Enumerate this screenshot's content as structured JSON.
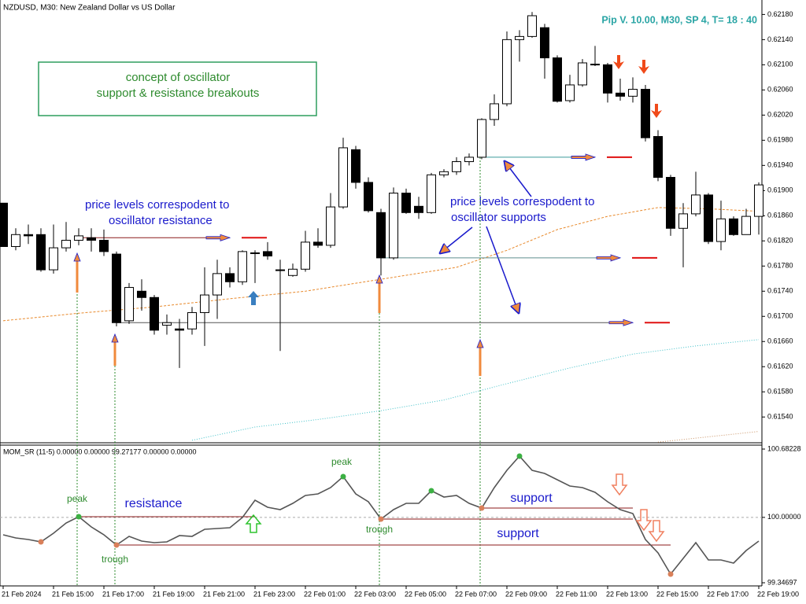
{
  "chart_data": [
    {
      "type": "candlestick",
      "title": "NZDUSD, M30:  New Zealand Dollar vs US Dollar",
      "subtitle": "Pip V. 10.00,  M30, SP 4,  T= 18  : 40",
      "open": [
        0.6188,
        0.61811,
        0.6183,
        0.6183,
        0.61774,
        0.61809,
        0.61821,
        0.61825,
        0.61821,
        0.61799,
        0.61693,
        0.6174,
        0.6173,
        0.61686,
        0.6168,
        0.6168,
        0.61706,
        0.61734,
        0.61768,
        0.61755,
        0.61801,
        0.61803,
        0.61774,
        0.61765,
        0.61775,
        0.61818,
        0.61813,
        0.61874,
        0.61965,
        0.61913,
        0.61865,
        0.61793,
        0.61896,
        0.61875,
        0.61865,
        0.61925,
        0.6193,
        0.61946,
        0.61953,
        0.62013,
        0.62038,
        0.6214,
        0.62145,
        0.62159,
        0.62111,
        0.62043,
        0.62068,
        0.62101,
        0.621,
        0.62055,
        0.6205,
        0.62061,
        0.61986,
        0.61921,
        0.6184,
        0.61863,
        0.61893,
        0.61819,
        0.61855,
        0.6183,
        0.61859
      ],
      "high": [
        0.6188,
        0.6184,
        0.61846,
        0.6184,
        0.61846,
        0.6185,
        0.6184,
        0.6184,
        0.61838,
        0.61803,
        0.61753,
        0.61759,
        0.61734,
        0.61703,
        0.61696,
        0.61715,
        0.61778,
        0.6179,
        0.61778,
        0.61805,
        0.61805,
        0.61818,
        0.6179,
        0.61784,
        0.61836,
        0.6184,
        0.61896,
        0.61984,
        0.61971,
        0.61921,
        0.61871,
        0.61905,
        0.61903,
        0.6189,
        0.61928,
        0.61934,
        0.61953,
        0.61959,
        0.62015,
        0.62053,
        0.62153,
        0.62155,
        0.62184,
        0.62165,
        0.62115,
        0.62084,
        0.62109,
        0.6213,
        0.62103,
        0.62078,
        0.6208,
        0.62068,
        0.61996,
        0.61925,
        0.6188,
        0.6193,
        0.61896,
        0.61884,
        0.61859,
        0.61871,
        0.61913
      ],
      "low": [
        0.61811,
        0.61805,
        0.61815,
        0.61771,
        0.61768,
        0.61803,
        0.61813,
        0.61803,
        0.61796,
        0.61684,
        0.61688,
        0.61709,
        0.61671,
        0.61671,
        0.61618,
        0.61671,
        0.61653,
        0.61696,
        0.61746,
        0.6175,
        0.61753,
        0.6179,
        0.61645,
        0.61763,
        0.61771,
        0.61809,
        0.61809,
        0.61871,
        0.61903,
        0.61865,
        0.61765,
        0.6179,
        0.61863,
        0.61855,
        0.61863,
        0.61921,
        0.61925,
        0.6194,
        0.6195,
        0.62003,
        0.62034,
        0.62105,
        0.62143,
        0.62078,
        0.6204,
        0.6204,
        0.62065,
        0.62098,
        0.6204,
        0.62043,
        0.6204,
        0.61978,
        0.61915,
        0.61828,
        0.61778,
        0.61859,
        0.61815,
        0.61805,
        0.61828,
        0.6183,
        0.6183
      ],
      "close": [
        0.61811,
        0.6183,
        0.61828,
        0.61774,
        0.61809,
        0.61821,
        0.61828,
        0.61821,
        0.61803,
        0.6169,
        0.61746,
        0.6173,
        0.61678,
        0.6169,
        0.61678,
        0.61706,
        0.61734,
        0.61768,
        0.61755,
        0.61803,
        0.61801,
        0.61796,
        0.61774,
        0.61775,
        0.61818,
        0.61813,
        0.61874,
        0.61968,
        0.61913,
        0.61868,
        0.61793,
        0.61896,
        0.61865,
        0.61865,
        0.61925,
        0.6193,
        0.61946,
        0.61953,
        0.62013,
        0.62038,
        0.6214,
        0.62145,
        0.62178,
        0.62111,
        0.62042,
        0.62068,
        0.62103,
        0.62101,
        0.62055,
        0.6205,
        0.62061,
        0.61984,
        0.61921,
        0.6184,
        0.61863,
        0.61893,
        0.61819,
        0.61855,
        0.6183,
        0.61859,
        0.61909
      ],
      "up_color": "#ffffff",
      "down_color": "#000000",
      "ylim": [
        0.61499,
        0.62203
      ],
      "yticks": [
        {
          "value": 0.6218,
          "label": "0.62180"
        },
        {
          "value": 0.6214,
          "label": "0.62140"
        },
        {
          "value": 0.621,
          "label": "0.62100"
        },
        {
          "value": 0.6206,
          "label": "0.62060"
        },
        {
          "value": 0.6202,
          "label": "0.62020"
        },
        {
          "value": 0.6198,
          "label": "0.61980"
        },
        {
          "value": 0.6194,
          "label": "0.61940"
        },
        {
          "value": 0.619,
          "label": "0.61900"
        },
        {
          "value": 0.6186,
          "label": "0.61860"
        },
        {
          "value": 0.6182,
          "label": "0.61820"
        },
        {
          "value": 0.6178,
          "label": "0.61780"
        },
        {
          "value": 0.6174,
          "label": "0.61740"
        },
        {
          "value": 0.617,
          "label": "0.61700"
        },
        {
          "value": 0.6166,
          "label": "0.61660"
        },
        {
          "value": 0.6162,
          "label": "0.61620"
        },
        {
          "value": 0.6158,
          "label": "0.61580"
        },
        {
          "value": 0.6154,
          "label": "0.61540"
        }
      ],
      "lines": [
        {
          "color": "#e8892b",
          "style": "dashed",
          "x": [
            0,
            6,
            12,
            18,
            24,
            30,
            36,
            40,
            44,
            48,
            52,
            56,
            60
          ],
          "values": [
            0.61693,
            0.61705,
            0.61715,
            0.61728,
            0.6174,
            0.61759,
            0.61778,
            0.61805,
            0.61838,
            0.61859,
            0.61873,
            0.61871,
            0.61867
          ]
        },
        {
          "color": "#3cc0c8",
          "style": "dotted",
          "x": [
            15,
            20,
            25,
            30,
            35,
            40,
            45,
            50,
            55,
            60
          ],
          "values": [
            0.61503,
            0.61524,
            0.61536,
            0.6155,
            0.61567,
            0.61593,
            0.61618,
            0.6164,
            0.61653,
            0.61663
          ]
        },
        {
          "color": "#c89060",
          "style": "dotted",
          "x": [
            52,
            60
          ],
          "values": [
            0.615,
            0.61517
          ]
        }
      ],
      "levels": [
        {
          "value": 0.61825,
          "from": 6,
          "to": 18,
          "color": "#8b1a1a"
        },
        {
          "value": 0.6169,
          "from": 9,
          "to": 50,
          "color": "#555555"
        },
        {
          "value": 0.61793,
          "from": 30,
          "to": 49,
          "color": "#5f8f8f"
        },
        {
          "value": 0.61953,
          "from": 38,
          "to": 47,
          "color": "#3a9a9a"
        }
      ],
      "box_text": [
        "concept of oscillator",
        "support & resistance breakouts"
      ],
      "notes": [
        [
          "price levels correspodent to",
          "oscillator resistance"
        ],
        [
          "price levels correspodent to",
          "oscillator supports"
        ]
      ]
    },
    {
      "type": "line",
      "title": "MOM_SR (11-5) 0.00000 0.00000 99.27177 0.00000 0.00000",
      "categories": [
        "21 Feb 2024",
        null,
        null,
        null,
        "21 Feb 15:00",
        null,
        null,
        null,
        "21 Feb 17:00",
        null,
        null,
        null,
        "21 Feb 19:00",
        null,
        null,
        null,
        "21 Feb 21:00",
        null,
        null,
        null,
        "21 Feb 23:00",
        null,
        null,
        null,
        "22 Feb 01:00",
        null,
        null,
        null,
        "22 Feb 03:00",
        null,
        null,
        null,
        "22 Feb 05:00",
        null,
        null,
        null,
        "22 Feb 07:00",
        null,
        null,
        null,
        "22 Feb 09:00",
        null,
        null,
        null,
        "22 Feb 11:00",
        null,
        null,
        null,
        "22 Feb 13:00",
        null,
        null,
        null,
        "22 Feb 15:00",
        null,
        null,
        null,
        "22 Feb 17:00",
        null,
        null,
        null,
        "22 Feb 19:00"
      ],
      "series": [
        {
          "color": "#555555",
          "values": [
            99.8261,
            99.7947,
            99.779,
            99.7554,
            99.8418,
            99.9439,
            100.0068,
            99.9047,
            99.8261,
            99.724,
            99.8104,
            99.7633,
            99.7476,
            99.7554,
            99.8183,
            99.8104,
            99.8811,
            99.889,
            99.8968,
            99.9989,
            100.1717,
            100.1011,
            100.0775,
            100.1403,
            100.2189,
            100.2346,
            100.2974,
            100.4074,
            100.2346,
            100.156,
            99.9832,
            100.0775,
            100.1403,
            100.1403,
            100.266,
            100.2032,
            100.2189,
            100.1403,
            100.0932,
            100.2974,
            100.4702,
            100.6116,
            100.4702,
            100.4388,
            100.376,
            100.3131,
            100.2974,
            100.2503,
            100.156,
            100.0775,
            100.0382,
            99.779,
            99.6455,
            99.4334,
            99.5905,
            99.7476,
            99.5748,
            99.5748,
            99.5434,
            99.669,
            99.7633
          ]
        }
      ],
      "ylim": [
        99.34697,
        100.68228
      ],
      "yticks": [
        100.68228,
        {
          "value": 100,
          "label": "100.00000"
        },
        99.34697
      ],
      "baseline": 100,
      "peaks": [
        6,
        27,
        34,
        41
      ],
      "troughs": [
        3,
        9,
        30,
        38,
        53
      ],
      "peak_color": "#3cb043",
      "trough_color": "#d9805a",
      "levels": [
        {
          "from": 6,
          "to": 20
        },
        {
          "from": 9,
          "to": 53
        },
        {
          "from": 30,
          "to": 50
        },
        {
          "from": 38,
          "to": 50
        }
      ],
      "level_color": "#8b1a1a",
      "annotations": [
        "peak",
        "peak",
        "trough",
        "trough",
        "resistance",
        "support",
        "support"
      ]
    }
  ]
}
